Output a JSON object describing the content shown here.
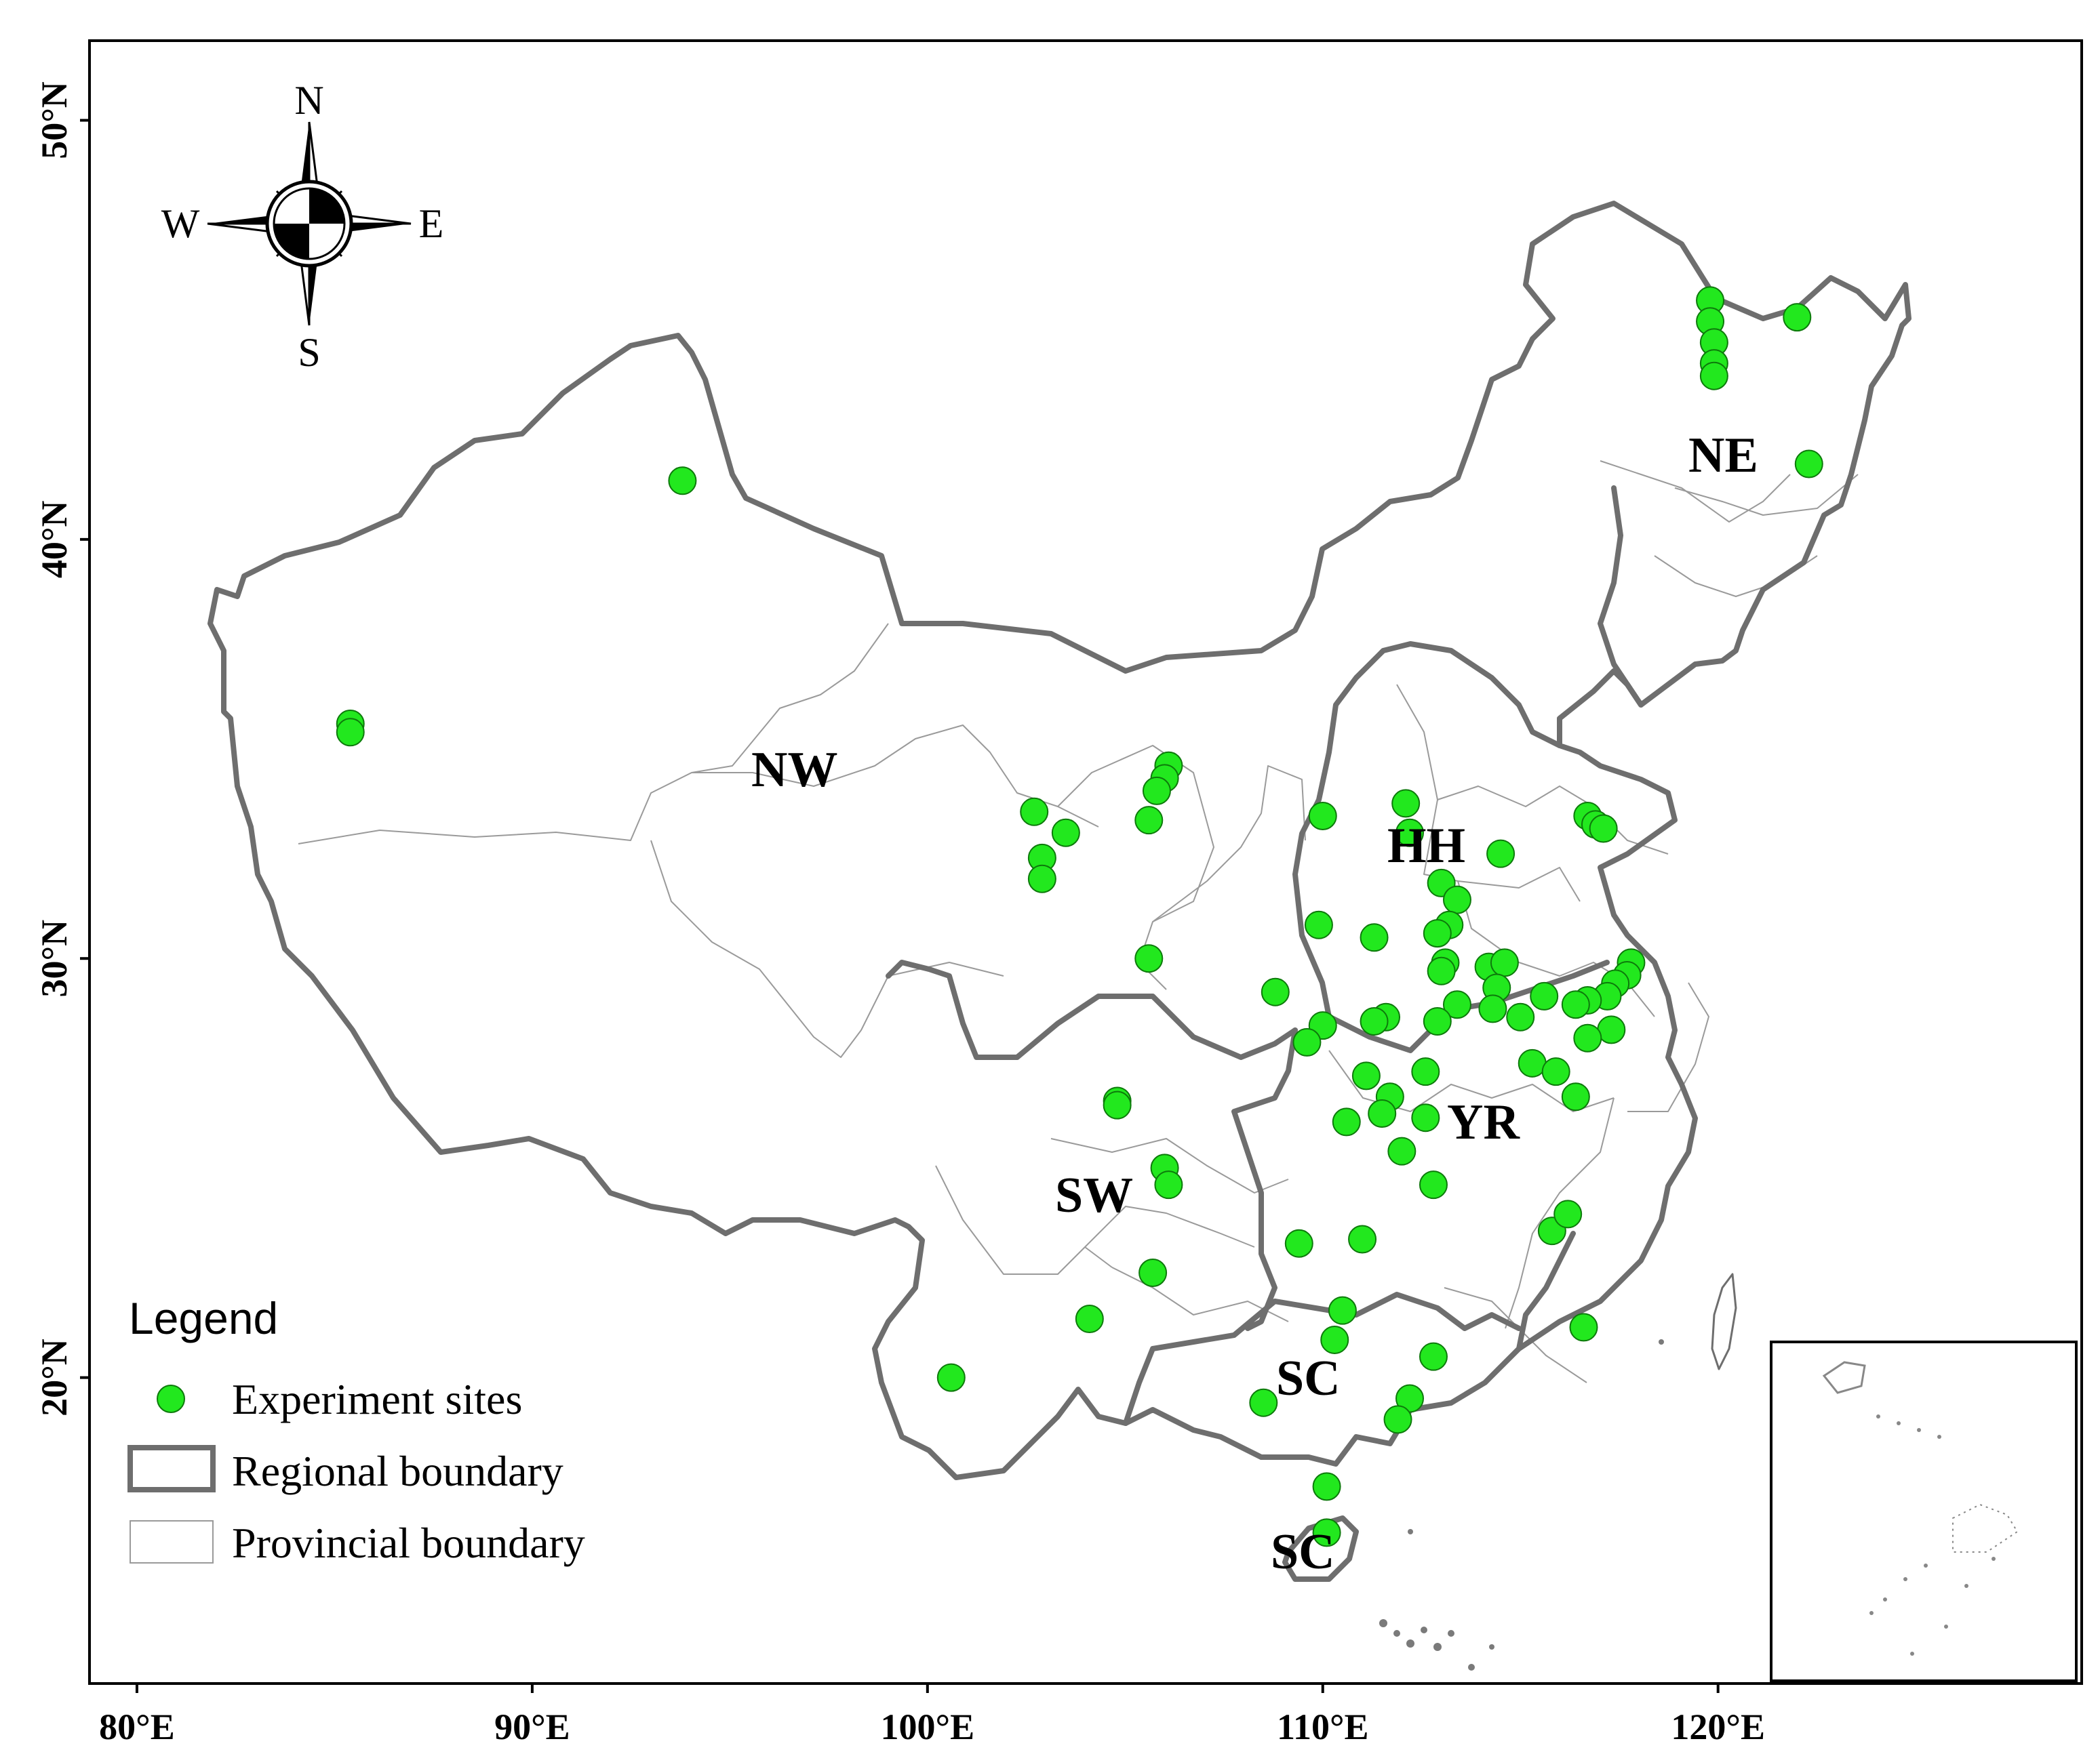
{
  "axes": {
    "x_ticks": [
      "80°E",
      "90°E",
      "100°E",
      "110°E",
      "120°E"
    ],
    "y_ticks": [
      "20°N",
      "30°N",
      "40°N",
      "50°N"
    ]
  },
  "compass": {
    "n": "N",
    "s": "S",
    "e": "E",
    "w": "W"
  },
  "regions": [
    {
      "label": "NE"
    },
    {
      "label": "NW"
    },
    {
      "label": "HH"
    },
    {
      "label": "YR"
    },
    {
      "label": "SW"
    },
    {
      "label": "SC"
    },
    {
      "label": "SC"
    }
  ],
  "legend": {
    "title": "Legend",
    "items": [
      {
        "label": "Experiment sites"
      },
      {
        "label": "Regional boundary"
      },
      {
        "label": "Provincial boundary"
      }
    ]
  },
  "colors": {
    "site_fill": "#22e81e",
    "site_stroke": "#0d7a0b",
    "regional_boundary": "#6e6e6e",
    "provincial_boundary": "#9a9a9a"
  },
  "chart_data": {
    "type": "scatter",
    "title": "",
    "xlabel": "",
    "ylabel": "",
    "xlim": [
      78.8,
      129.2
    ],
    "ylim": [
      12.7,
      51.9
    ],
    "x_ticks": [
      80,
      90,
      100,
      110,
      120
    ],
    "y_ticks": [
      20,
      30,
      40,
      50
    ],
    "series": [
      {
        "name": "Experiment sites",
        "points": [
          [
            119.8,
            45.7
          ],
          [
            119.8,
            45.2
          ],
          [
            119.9,
            44.7
          ],
          [
            119.9,
            44.2
          ],
          [
            119.9,
            43.9
          ],
          [
            122.0,
            45.3
          ],
          [
            122.3,
            41.8
          ],
          [
            93.8,
            41.4
          ],
          [
            85.4,
            35.6
          ],
          [
            85.4,
            35.4
          ],
          [
            106.1,
            34.6
          ],
          [
            106.0,
            34.3
          ],
          [
            105.8,
            34.0
          ],
          [
            105.6,
            33.3
          ],
          [
            102.7,
            33.5
          ],
          [
            103.5,
            33.0
          ],
          [
            102.9,
            32.4
          ],
          [
            102.9,
            31.9
          ],
          [
            110.0,
            33.4
          ],
          [
            109.9,
            30.8
          ],
          [
            105.6,
            30.0
          ],
          [
            112.1,
            33.7
          ],
          [
            112.2,
            33.0
          ],
          [
            114.5,
            32.5
          ],
          [
            116.7,
            33.4
          ],
          [
            116.9,
            33.2
          ],
          [
            117.1,
            33.1
          ],
          [
            113.0,
            31.8
          ],
          [
            113.4,
            31.4
          ],
          [
            113.2,
            30.8
          ],
          [
            112.9,
            30.6
          ],
          [
            111.3,
            30.5
          ],
          [
            113.1,
            29.9
          ],
          [
            113.0,
            29.7
          ],
          [
            114.2,
            29.8
          ],
          [
            114.6,
            29.9
          ],
          [
            114.4,
            29.3
          ],
          [
            117.8,
            29.9
          ],
          [
            117.7,
            29.6
          ],
          [
            117.4,
            29.4
          ],
          [
            117.2,
            29.1
          ],
          [
            116.7,
            29.0
          ],
          [
            116.4,
            28.9
          ],
          [
            115.6,
            29.1
          ],
          [
            115.0,
            28.6
          ],
          [
            114.3,
            28.8
          ],
          [
            113.4,
            28.9
          ],
          [
            112.9,
            28.5
          ],
          [
            111.6,
            28.6
          ],
          [
            111.3,
            28.5
          ],
          [
            110.0,
            28.4
          ],
          [
            109.6,
            28.0
          ],
          [
            108.8,
            29.2
          ],
          [
            117.3,
            28.3
          ],
          [
            116.7,
            28.1
          ],
          [
            111.1,
            27.2
          ],
          [
            112.6,
            27.3
          ],
          [
            111.7,
            26.7
          ],
          [
            111.5,
            26.3
          ],
          [
            110.6,
            26.1
          ],
          [
            112.6,
            26.2
          ],
          [
            112.0,
            25.4
          ],
          [
            112.8,
            24.6
          ],
          [
            115.3,
            27.5
          ],
          [
            115.9,
            27.3
          ],
          [
            116.4,
            26.7
          ],
          [
            104.8,
            26.6
          ],
          [
            104.8,
            26.5
          ],
          [
            106.0,
            25.0
          ],
          [
            106.1,
            24.6
          ],
          [
            105.7,
            22.5
          ],
          [
            109.4,
            23.2
          ],
          [
            111.0,
            23.3
          ],
          [
            115.8,
            23.5
          ],
          [
            116.2,
            23.9
          ],
          [
            116.6,
            21.2
          ],
          [
            104.1,
            21.4
          ],
          [
            100.6,
            20.0
          ],
          [
            110.5,
            21.6
          ],
          [
            110.3,
            20.9
          ],
          [
            112.8,
            20.5
          ],
          [
            112.2,
            19.5
          ],
          [
            111.9,
            19.0
          ],
          [
            108.5,
            19.4
          ],
          [
            110.1,
            17.4
          ],
          [
            110.1,
            16.3
          ]
        ]
      }
    ]
  }
}
